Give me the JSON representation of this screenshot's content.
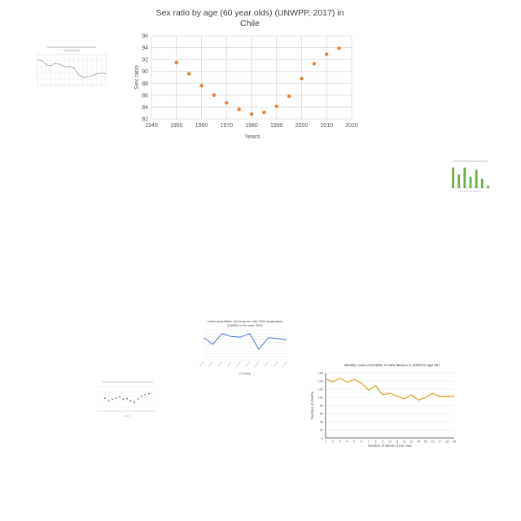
{
  "chart_data": [
    {
      "id": "main",
      "type": "scatter",
      "title": "Sex ratio by age (60 year olds) (UNWPP, 2017) in Chile",
      "title_lines": [
        "Sex ratio by age (60 year olds) (UNWPP, 2017) in",
        "Chile"
      ],
      "xlabel": "Years",
      "ylabel": "Sex ratio",
      "xlim": [
        1940,
        2020
      ],
      "ylim": [
        82,
        96
      ],
      "x_ticks": [
        1940,
        1950,
        1960,
        1970,
        1980,
        1990,
        2000,
        2010,
        2020
      ],
      "y_ticks": [
        82,
        84,
        86,
        88,
        90,
        92,
        94,
        96
      ],
      "x_tick_labels": [
        "1940",
        "1950",
        "1960",
        "1970",
        "1980",
        "1990",
        "2000",
        "2010",
        "2020"
      ],
      "y_tick_labels": [
        "82",
        "84",
        "86",
        "88",
        "90",
        "92",
        "94",
        "96"
      ],
      "grid": true,
      "color": "#ED7D31",
      "x": [
        1950,
        1955,
        1960,
        1965,
        1970,
        1975,
        1980,
        1985,
        1990,
        1995,
        2000,
        2005,
        2010,
        2015
      ],
      "y": [
        91.5,
        89.6,
        87.6,
        86.0,
        84.7,
        83.6,
        82.8,
        83.1,
        84.1,
        85.8,
        88.8,
        91.3,
        92.9,
        93.9
      ]
    },
    {
      "id": "mini-line",
      "type": "line",
      "title": "",
      "xlabel": "",
      "ylabel": "",
      "xlim": [
        0,
        15
      ],
      "ylim": [
        0,
        5
      ],
      "grid": true,
      "color": "#A5A5A5",
      "x": [
        0,
        1,
        2,
        3,
        4,
        5,
        6,
        7,
        8,
        9,
        10,
        11,
        12,
        13,
        14,
        15
      ],
      "y": [
        4.1,
        4.0,
        3.3,
        3.2,
        3.6,
        3.4,
        3.0,
        3.1,
        2.8,
        1.8,
        1.3,
        1.4,
        1.6,
        1.9,
        2.0,
        1.9
      ]
    },
    {
      "id": "mini-bar",
      "type": "bar",
      "title": "",
      "xlabel": "",
      "ylabel": "",
      "ylim": [
        0,
        10
      ],
      "color": "#70AD47",
      "categories": [
        "1",
        "2",
        "3",
        "4",
        "5",
        "6",
        "7"
      ],
      "values": [
        9,
        6,
        9,
        5,
        8,
        4,
        1
      ]
    },
    {
      "id": "urban",
      "type": "line",
      "title": "Urban population (%) long-run with 2050 projections (OWID) in the year 2022",
      "title_lines": [
        "Urban population (%) long-run with 2050 projections",
        "(OWID) in the year 2022"
      ],
      "xlabel": "Country",
      "ylabel": "",
      "ylim": [
        0,
        100
      ],
      "grid": true,
      "color": "#4472C4",
      "categories": [
        "1",
        "2",
        "3",
        "4",
        "5",
        "6",
        "7",
        "8",
        "9",
        "10"
      ],
      "values": [
        76,
        53,
        89,
        80,
        77,
        90,
        35,
        75,
        73,
        68
      ]
    },
    {
      "id": "mini-scatter",
      "type": "scatter",
      "title": "",
      "xlabel": "",
      "ylabel": "",
      "xlim": [
        0,
        16
      ],
      "ylim": [
        0,
        10
      ],
      "grid": true,
      "color": "#5B6B7A",
      "x": [
        2,
        3,
        4,
        5,
        6,
        7,
        8,
        9,
        10,
        11,
        12,
        13,
        14
      ],
      "y": [
        5.2,
        4.4,
        4.9,
        5.3,
        5.8,
        4.9,
        5.1,
        4.3,
        3.6,
        5.0,
        6.1,
        6.8,
        7.1
      ]
    },
    {
      "id": "deaths",
      "type": "line",
      "title": "Weekly count of Deaths in New Mexico in 2020 for age 85+",
      "xlabel": "Number of Week of the Year",
      "ylabel": "Number of deaths",
      "xlim": [
        1,
        19
      ],
      "ylim": [
        0,
        160
      ],
      "x_ticks": [
        1,
        2,
        3,
        4,
        5,
        6,
        7,
        8,
        9,
        10,
        11,
        12,
        13,
        14,
        15,
        16,
        17,
        18,
        19
      ],
      "y_ticks": [
        0,
        20,
        40,
        60,
        80,
        100,
        120,
        140,
        160
      ],
      "x_tick_labels": [
        "1",
        "2",
        "3",
        "4",
        "5",
        "6",
        "7",
        "8",
        "9",
        "10",
        "11",
        "12",
        "13",
        "14",
        "15",
        "16",
        "17",
        "18",
        "19"
      ],
      "y_tick_labels": [
        "0",
        "20",
        "40",
        "60",
        "80",
        "100",
        "120",
        "140",
        "160"
      ],
      "grid": true,
      "color": "#D4A017",
      "x": [
        1,
        2,
        3,
        4,
        5,
        6,
        7,
        8,
        9,
        10,
        11,
        12,
        13,
        14,
        15,
        16,
        17,
        18,
        19
      ],
      "y": [
        145,
        138,
        147,
        137,
        144,
        135,
        118,
        128,
        106,
        110,
        103,
        96,
        106,
        93,
        100,
        110,
        101,
        102,
        103
      ]
    }
  ]
}
